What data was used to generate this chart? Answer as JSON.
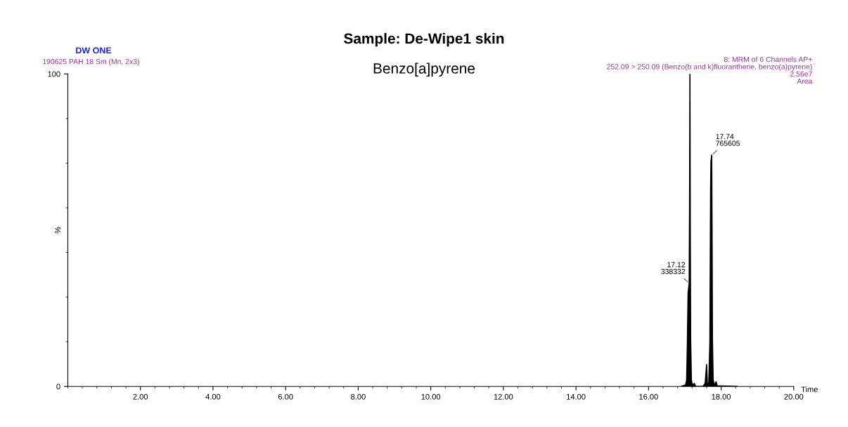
{
  "chart_data": {
    "type": "area",
    "title": "Sample: De-Wipe1 skin",
    "subtitle": "Benzo[a]pyrene",
    "xlabel": "Time",
    "ylabel": "%",
    "x": [
      16.9,
      17.02,
      17.05,
      17.07,
      17.09,
      17.12,
      17.13,
      17.14,
      17.15,
      17.16,
      17.18,
      17.21,
      17.26,
      17.3,
      17.5,
      17.56,
      17.6,
      17.62,
      17.66,
      17.69,
      17.71,
      17.72,
      17.74,
      17.75,
      17.76,
      17.78,
      17.82,
      17.86,
      17.89,
      18.45
    ],
    "series": [
      {
        "color": "#000000",
        "values": [
          0,
          0.5,
          2,
          14,
          30,
          33,
          56,
          100,
          47,
          15,
          2,
          0.3,
          1,
          0,
          0,
          1,
          7,
          1,
          1,
          14,
          63,
          72,
          74,
          48,
          15,
          2,
          0.3,
          1.5,
          0.2,
          0
        ]
      }
    ],
    "xlim": [
      0,
      20
    ],
    "xticks": [
      {
        "value": 2,
        "label": "2.00"
      },
      {
        "value": 4,
        "label": "4.00"
      },
      {
        "value": 6,
        "label": "6.00"
      },
      {
        "value": 8,
        "label": "8.00"
      },
      {
        "value": 10,
        "label": "10.00"
      },
      {
        "value": 12,
        "label": "12.00"
      },
      {
        "value": 14,
        "label": "14.00"
      },
      {
        "value": 16,
        "label": "16.00"
      },
      {
        "value": 18,
        "label": "18.00"
      },
      {
        "value": 20,
        "label": "20.00"
      }
    ],
    "ylim": [
      0,
      100
    ],
    "yticks": [
      0,
      100
    ],
    "grid": false,
    "legend": false,
    "annotations": [
      "DW ONE",
      "190625 PAH 18 Sm (Mn, 2x3)",
      "8: MRM of 6 Channels AP+",
      "252.09 > 250.09 (Benzo(b and k)fluoranthene, benzo(a)pyrene)",
      "2.56e7",
      "Area",
      {
        "text": "17.12\n338332",
        "x": 17.12,
        "y": 33
      },
      {
        "text": "17.74\n765605",
        "x": 17.74,
        "y": 74
      }
    ]
  }
}
